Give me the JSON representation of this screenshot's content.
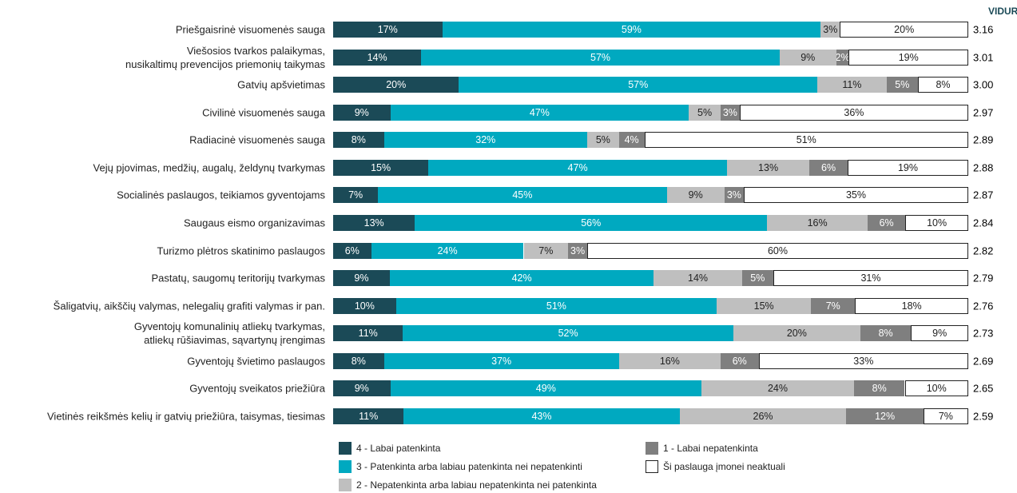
{
  "chart_data": {
    "type": "stacked-bar-100",
    "average_header": "VIDURKIS",
    "categories": [
      "Priešgaisrinė visuomenės sauga",
      "Viešosios tvarkos palaikymas,\nnusikaltimų prevencijos priemonių taikymas",
      "Gatvių apšvietimas",
      "Civilinė visuomenės sauga",
      "Radiacinė visuomenės sauga",
      "Vejų pjovimas, medžių, augalų, želdynų tvarkymas",
      "Socialinės paslaugos, teikiamos gyventojams",
      "Saugaus eismo organizavimas",
      "Turizmo plėtros skatinimo paslaugos",
      "Pastatų, saugomų teritorijų tvarkymas",
      "Šaligatvių, aikščių valymas, nelegalių grafiti valymas ir pan.",
      "Gyventojų komunalinių atliekų tvarkymas,\natliekų rūšiavimas, sąvartynų įrengimas",
      "Gyventojų švietimo paslaugos",
      "Gyventojų sveikatos priežiūra",
      "Vietinės reikšmės kelių ir gatvių priežiūra, taisymas, tiesimas"
    ],
    "averages": [
      3.16,
      3.01,
      3.0,
      2.97,
      2.89,
      2.88,
      2.87,
      2.84,
      2.82,
      2.79,
      2.76,
      2.73,
      2.69,
      2.65,
      2.59
    ],
    "average_labels": [
      "3.16",
      "3.01",
      "3.00",
      "2.97",
      "2.89",
      "2.88",
      "2.87",
      "2.84",
      "2.82",
      "2.79",
      "2.76",
      "2.73",
      "2.69",
      "2.65",
      "2.59"
    ],
    "series": [
      {
        "name": "4 - Labai patenkinta",
        "color": "#1b4a57",
        "values": [
          17,
          14,
          20,
          9,
          8,
          15,
          7,
          13,
          6,
          9,
          10,
          11,
          8,
          9,
          11
        ],
        "value_labels": [
          "17%",
          "14%",
          "20%",
          "9%",
          "8%",
          "15%",
          "7%",
          "13%",
          "6%",
          "9%",
          "10%",
          "11%",
          "8%",
          "9%",
          "11%"
        ]
      },
      {
        "name": "3 - Patenkinta arba labiau patenkinta nei nepatenkinti",
        "color": "#00a9c0",
        "values": [
          59,
          57,
          57,
          47,
          32,
          47,
          45,
          56,
          24,
          42,
          51,
          52,
          37,
          49,
          43
        ],
        "value_labels": [
          "59%",
          "57%",
          "57%",
          "47%",
          "32%",
          "47%",
          "45%",
          "56%",
          "24%",
          "42%",
          "51%",
          "52%",
          "37%",
          "49%",
          "43%"
        ]
      },
      {
        "name": "2 - Nepatenkinta arba labiau nepatenkinta nei patenkinta",
        "color": "#bfbfbf",
        "values": [
          3,
          9,
          11,
          5,
          5,
          13,
          9,
          16,
          7,
          14,
          15,
          20,
          16,
          24,
          26
        ],
        "value_labels": [
          "3%",
          "9%",
          "11%",
          "5%",
          "5%",
          "13%",
          "9%",
          "16%",
          "7%",
          "14%",
          "15%",
          "20%",
          "16%",
          "24%",
          "26%"
        ]
      },
      {
        "name": "1 - Labai nepatenkinta",
        "color": "#7f7f7f",
        "values": [
          null,
          2,
          5,
          3,
          4,
          6,
          3,
          6,
          3,
          5,
          7,
          8,
          6,
          8,
          12
        ],
        "value_labels": [
          null,
          "2%",
          "5%",
          "3%",
          "4%",
          "6%",
          "3%",
          "6%",
          "3%",
          "5%",
          "7%",
          "8%",
          "6%",
          "8%",
          "12%"
        ]
      },
      {
        "name": "Ši paslauga įmonei neaktuali",
        "color": "#ffffff",
        "values": [
          20,
          19,
          8,
          36,
          51,
          19,
          35,
          10,
          60,
          31,
          18,
          9,
          33,
          10,
          7
        ],
        "value_labels": [
          "20%",
          "19%",
          "8%",
          "36%",
          "51%",
          "19%",
          "35%",
          "10%",
          "60%",
          "31%",
          "18%",
          "9%",
          "33%",
          "10%",
          "7%"
        ]
      }
    ]
  }
}
